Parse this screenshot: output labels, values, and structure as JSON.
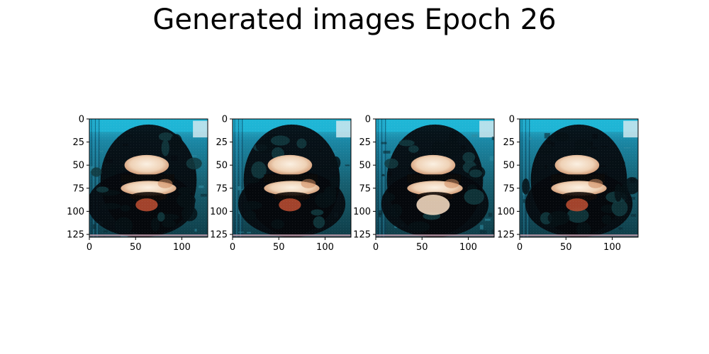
{
  "figure": {
    "title": "Generated images Epoch 26"
  },
  "chart_data": {
    "type": "image-grid",
    "title": "Generated images Epoch 26",
    "panels": [
      {
        "image_content": "generated face, dark hair, bright skin patches, teal-blue background",
        "image_size": [
          128,
          128
        ],
        "xlim": [
          0,
          128
        ],
        "ylim": [
          128,
          0
        ],
        "xticks": [
          0,
          50,
          100
        ],
        "yticks": [
          0,
          25,
          50,
          75,
          100,
          125
        ]
      },
      {
        "image_content": "generated face, dark hair, bright skin patches, teal-blue background",
        "image_size": [
          128,
          128
        ],
        "xlim": [
          0,
          128
        ],
        "ylim": [
          128,
          0
        ],
        "xticks": [
          0,
          50,
          100
        ],
        "yticks": [
          0,
          25,
          50,
          75,
          100,
          125
        ]
      },
      {
        "image_content": "generated face, dark hair, bright skin patches, teal-blue background",
        "image_size": [
          128,
          128
        ],
        "xlim": [
          0,
          128
        ],
        "ylim": [
          128,
          0
        ],
        "xticks": [
          0,
          50,
          100
        ],
        "yticks": [
          0,
          25,
          50,
          75,
          100,
          125
        ]
      },
      {
        "image_content": "generated face, dark hair, bright skin patches, teal-blue background",
        "image_size": [
          128,
          128
        ],
        "xlim": [
          0,
          128
        ],
        "ylim": [
          128,
          0
        ],
        "xticks": [
          0,
          50,
          100
        ],
        "yticks": [
          0,
          25,
          50,
          75,
          100,
          125
        ]
      }
    ],
    "colors": {
      "background_cyan": "#1fb6d6",
      "background_teal": "#1f6f86",
      "hair_dark": "#05080c",
      "skin_light": "#f1dcc6",
      "skin_warm": "#d08a5f",
      "mouth_red": "#b44a30",
      "bottom_stripe": "#c9a0b0"
    }
  }
}
